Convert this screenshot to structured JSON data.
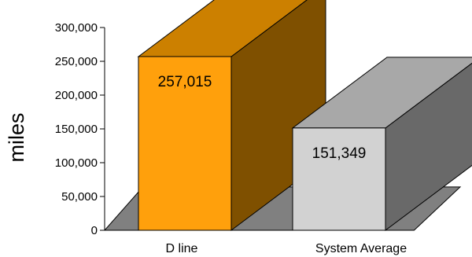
{
  "chart_data": {
    "type": "bar",
    "title": "",
    "xlabel": "",
    "ylabel": "miles",
    "ylim": [
      0,
      300000
    ],
    "ytick_values": [
      0,
      50000,
      100000,
      150000,
      200000,
      250000,
      300000
    ],
    "ytick_labels": [
      "0",
      "50,000",
      "100,000",
      "150,000",
      "200,000",
      "250,000",
      "300,000"
    ],
    "categories": [
      "D line",
      "System Average"
    ],
    "values": [
      257015,
      151349
    ],
    "data_labels": [
      "257,015",
      "151,349"
    ],
    "grid": false,
    "legend": "none",
    "style": "3d-column"
  },
  "colors": {
    "bars": [
      {
        "front": "#FFA00C",
        "top": "#CC8000",
        "side": "#7F5000"
      },
      {
        "front": "#D2D2D2",
        "top": "#A8A8A8",
        "side": "#696969"
      }
    ],
    "floor": "#808080",
    "axis": "#000000",
    "outline": "#000000"
  }
}
